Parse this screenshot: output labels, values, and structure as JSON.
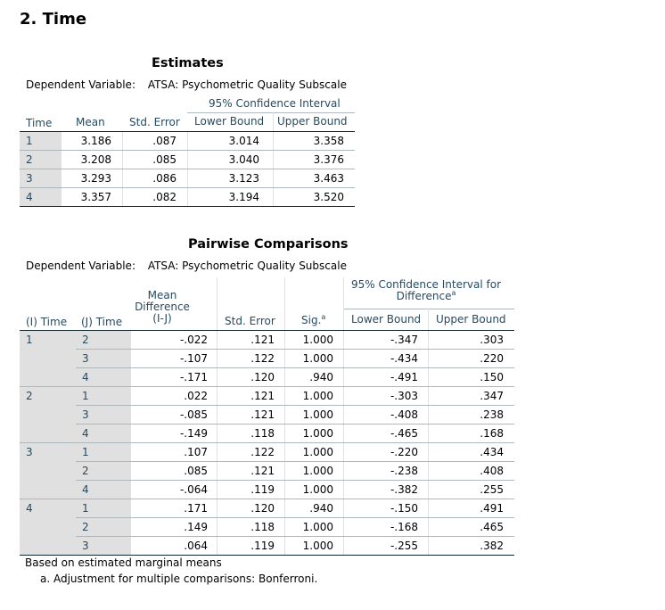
{
  "section_title": "2. Time",
  "estimates": {
    "title": "Estimates",
    "dependent_variable_label": "Dependent Variable:",
    "dependent_variable_value": "ATSA: Psychometric Quality Subscale",
    "ci_header": "95% Confidence Interval",
    "columns": [
      "Time",
      "Mean",
      "Std. Error",
      "Lower Bound",
      "Upper Bound"
    ],
    "rows": [
      {
        "time": "1",
        "mean": "3.186",
        "se": ".087",
        "lower": "3.014",
        "upper": "3.358"
      },
      {
        "time": "2",
        "mean": "3.208",
        "se": ".085",
        "lower": "3.040",
        "upper": "3.376"
      },
      {
        "time": "3",
        "mean": "3.293",
        "se": ".086",
        "lower": "3.123",
        "upper": "3.463"
      },
      {
        "time": "4",
        "mean": "3.357",
        "se": ".082",
        "lower": "3.194",
        "upper": "3.520"
      }
    ]
  },
  "pairwise": {
    "title": "Pairwise Comparisons",
    "dependent_variable_label": "Dependent Variable:",
    "dependent_variable_value": "ATSA: Psychometric Quality Subscale",
    "ci_header": "95% Confidence Interval for Difference",
    "ci_header_sup": "a",
    "columns": {
      "i_time": "(I) Time",
      "j_time": "(J) Time",
      "mean_diff": "Mean Difference (I-J)",
      "se": "Std. Error",
      "sig": "Sig.",
      "sig_sup": "a",
      "lower": "Lower Bound",
      "upper": "Upper Bound"
    },
    "groups": [
      {
        "i": "1",
        "rows": [
          {
            "j": "2",
            "md": "-.022",
            "se": ".121",
            "sig": "1.000",
            "lower": "-.347",
            "upper": ".303"
          },
          {
            "j": "3",
            "md": "-.107",
            "se": ".122",
            "sig": "1.000",
            "lower": "-.434",
            "upper": ".220"
          },
          {
            "j": "4",
            "md": "-.171",
            "se": ".120",
            "sig": ".940",
            "lower": "-.491",
            "upper": ".150"
          }
        ]
      },
      {
        "i": "2",
        "rows": [
          {
            "j": "1",
            "md": ".022",
            "se": ".121",
            "sig": "1.000",
            "lower": "-.303",
            "upper": ".347"
          },
          {
            "j": "3",
            "md": "-.085",
            "se": ".121",
            "sig": "1.000",
            "lower": "-.408",
            "upper": ".238"
          },
          {
            "j": "4",
            "md": "-.149",
            "se": ".118",
            "sig": "1.000",
            "lower": "-.465",
            "upper": ".168"
          }
        ]
      },
      {
        "i": "3",
        "rows": [
          {
            "j": "1",
            "md": ".107",
            "se": ".122",
            "sig": "1.000",
            "lower": "-.220",
            "upper": ".434"
          },
          {
            "j": "2",
            "md": ".085",
            "se": ".121",
            "sig": "1.000",
            "lower": "-.238",
            "upper": ".408"
          },
          {
            "j": "4",
            "md": "-.064",
            "se": ".119",
            "sig": "1.000",
            "lower": "-.382",
            "upper": ".255"
          }
        ]
      },
      {
        "i": "4",
        "rows": [
          {
            "j": "1",
            "md": ".171",
            "se": ".120",
            "sig": ".940",
            "lower": "-.150",
            "upper": ".491"
          },
          {
            "j": "2",
            "md": ".149",
            "se": ".118",
            "sig": "1.000",
            "lower": "-.168",
            "upper": ".465"
          },
          {
            "j": "3",
            "md": ".064",
            "se": ".119",
            "sig": "1.000",
            "lower": "-.255",
            "upper": ".382"
          }
        ]
      }
    ],
    "footnote_main": "Based on estimated marginal means",
    "footnote_a": "a. Adjustment for multiple comparisons: Bonferroni."
  }
}
